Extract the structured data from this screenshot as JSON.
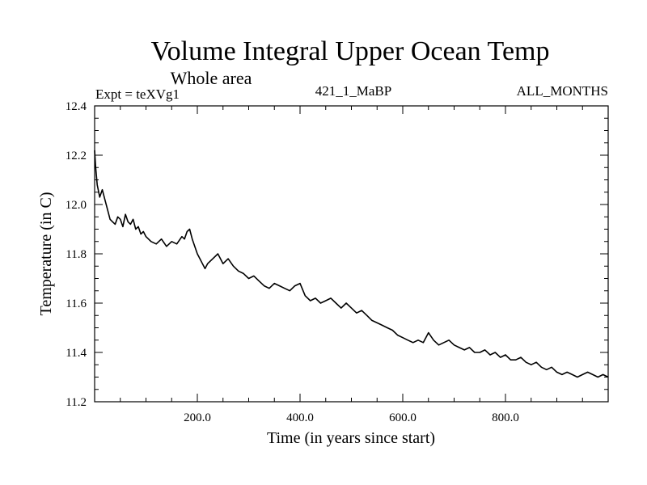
{
  "chart_data": {
    "type": "line",
    "title": "Volume Integral Upper Ocean Temp",
    "subtitle": "Whole area",
    "annotations": {
      "left": "Expt = teXVg1",
      "center": "421_1_MaBP",
      "right": "ALL_MONTHS"
    },
    "xlabel": "Time (in years since start)",
    "ylabel": "Temperature (in C)",
    "xlim": [
      0,
      1000
    ],
    "ylim": [
      11.2,
      12.4
    ],
    "x_ticks": [
      200,
      400,
      600,
      800
    ],
    "x_tick_labels": [
      "200.0",
      "400.0",
      "600.0",
      "800.0"
    ],
    "y_ticks": [
      11.2,
      11.4,
      11.6,
      11.8,
      12.0,
      12.2,
      12.4
    ],
    "y_tick_labels": [
      "11.2",
      "11.4",
      "11.6",
      "11.8",
      "12.0",
      "12.2",
      "12.4"
    ],
    "grid": false,
    "series": [
      {
        "name": "Volume integral upper ocean temperature",
        "color": "#000000",
        "x": [
          0,
          2,
          5,
          10,
          15,
          20,
          25,
          30,
          35,
          40,
          45,
          50,
          55,
          60,
          65,
          70,
          75,
          80,
          85,
          90,
          95,
          100,
          110,
          120,
          130,
          140,
          150,
          160,
          170,
          175,
          180,
          185,
          190,
          195,
          200,
          205,
          210,
          215,
          220,
          230,
          240,
          250,
          260,
          270,
          280,
          290,
          300,
          310,
          320,
          330,
          340,
          350,
          360,
          370,
          380,
          390,
          400,
          410,
          420,
          430,
          440,
          450,
          460,
          470,
          480,
          490,
          500,
          510,
          520,
          530,
          540,
          550,
          560,
          570,
          580,
          590,
          600,
          610,
          620,
          630,
          640,
          650,
          660,
          670,
          680,
          690,
          700,
          710,
          720,
          730,
          740,
          750,
          760,
          770,
          780,
          790,
          800,
          810,
          820,
          830,
          840,
          850,
          860,
          870,
          880,
          890,
          900,
          910,
          920,
          930,
          940,
          950,
          960,
          970,
          980,
          990,
          1000
        ],
        "values": [
          12.22,
          12.15,
          12.08,
          12.03,
          12.06,
          12.02,
          11.98,
          11.94,
          11.93,
          11.92,
          11.95,
          11.94,
          11.91,
          11.96,
          11.93,
          11.92,
          11.94,
          11.9,
          11.91,
          11.88,
          11.89,
          11.87,
          11.85,
          11.84,
          11.86,
          11.83,
          11.85,
          11.84,
          11.87,
          11.86,
          11.89,
          11.9,
          11.86,
          11.83,
          11.8,
          11.78,
          11.76,
          11.74,
          11.76,
          11.78,
          11.8,
          11.76,
          11.78,
          11.75,
          11.73,
          11.72,
          11.7,
          11.71,
          11.69,
          11.67,
          11.66,
          11.68,
          11.67,
          11.66,
          11.65,
          11.67,
          11.68,
          11.63,
          11.61,
          11.62,
          11.6,
          11.61,
          11.62,
          11.6,
          11.58,
          11.6,
          11.58,
          11.56,
          11.57,
          11.55,
          11.53,
          11.52,
          11.51,
          11.5,
          11.49,
          11.47,
          11.46,
          11.45,
          11.44,
          11.45,
          11.44,
          11.48,
          11.45,
          11.43,
          11.44,
          11.45,
          11.43,
          11.42,
          11.41,
          11.42,
          11.4,
          11.4,
          11.41,
          11.39,
          11.4,
          11.38,
          11.39,
          11.37,
          11.37,
          11.38,
          11.36,
          11.35,
          11.36,
          11.34,
          11.33,
          11.34,
          11.32,
          11.31,
          11.32,
          11.31,
          11.3,
          11.31,
          11.32,
          11.31,
          11.3,
          11.31,
          11.3
        ]
      }
    ]
  }
}
